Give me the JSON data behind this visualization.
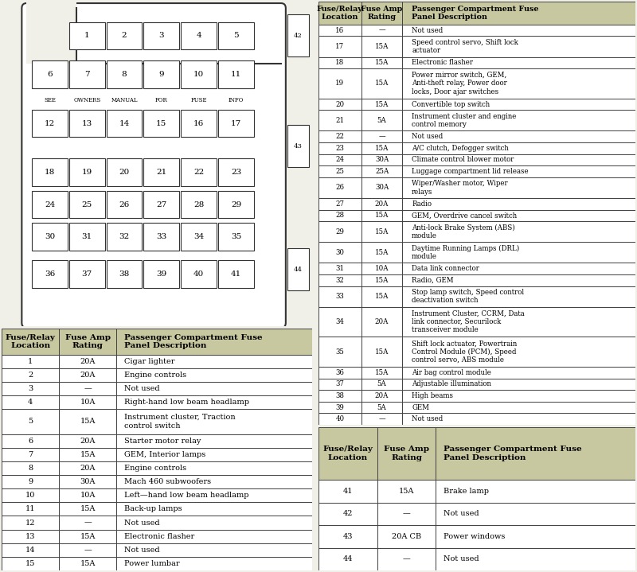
{
  "bg_color": "#f0f0e8",
  "table_header_bg": "#c8c8a0",
  "table_row_bg": "#ffffff",
  "table_border_color": "#444444",
  "fuse_box_bg": "#ffffff",
  "fuse_box_border": "#333333",
  "fuse_cell_bg": "#ffffff",
  "fuse_cell_border": "#333333",
  "row1_fuses": [
    "1",
    "2",
    "3",
    "4",
    "5"
  ],
  "row2_fuses": [
    "6",
    "7",
    "8",
    "9",
    "10",
    "11"
  ],
  "row2_labels": [
    "SEE",
    "OWNERS",
    "MANUAL",
    "FOR",
    "FUSE",
    "INFO"
  ],
  "row3_fuses": [
    "12",
    "13",
    "14",
    "15",
    "16",
    "17"
  ],
  "row4_fuses": [
    "18",
    "19",
    "20",
    "21",
    "22",
    "23"
  ],
  "row5_fuses": [
    "24",
    "25",
    "26",
    "27",
    "28",
    "29"
  ],
  "row6_fuses": [
    "30",
    "31",
    "32",
    "33",
    "34",
    "35"
  ],
  "row7_fuses": [
    "36",
    "37",
    "38",
    "39",
    "40",
    "41"
  ],
  "side_fuses": [
    "42",
    "43",
    "44"
  ],
  "table1_data": [
    [
      "Fuse/Relay\nLocation",
      "Fuse Amp\nRating",
      "Passenger Compartment Fuse\nPanel Description"
    ],
    [
      "1",
      "20A",
      "Cigar lighter"
    ],
    [
      "2",
      "20A",
      "Engine controls"
    ],
    [
      "3",
      "—",
      "Not used"
    ],
    [
      "4",
      "10A",
      "Right-hand low beam headlamp"
    ],
    [
      "5",
      "15A",
      "Instrument cluster, Traction\ncontrol switch"
    ],
    [
      "6",
      "20A",
      "Starter motor relay"
    ],
    [
      "7",
      "15A",
      "GEM, Interior lamps"
    ],
    [
      "8",
      "20A",
      "Engine controls"
    ],
    [
      "9",
      "30A",
      "Mach 460 subwoofers"
    ],
    [
      "10",
      "10A",
      "Left—hand low beam headlamp"
    ],
    [
      "11",
      "15A",
      "Back-up lamps"
    ],
    [
      "12",
      "—",
      "Not used"
    ],
    [
      "13",
      "15A",
      "Electronic flasher"
    ],
    [
      "14",
      "—",
      "Not used"
    ],
    [
      "15",
      "15A",
      "Power lumbar"
    ]
  ],
  "table2_data": [
    [
      "Fuse/Relay\nLocation",
      "Fuse Amp\nRating",
      "Passenger Compartment Fuse\nPanel Description"
    ],
    [
      "16",
      "—",
      "Not used"
    ],
    [
      "17",
      "15A",
      "Speed control servo, Shift lock\nactuator"
    ],
    [
      "18",
      "15A",
      "Electronic flasher"
    ],
    [
      "19",
      "15A",
      "Power mirror switch, GEM,\nAnti-theft relay, Power door\nlocks, Door ajar switches"
    ],
    [
      "20",
      "15A",
      "Convertible top switch"
    ],
    [
      "21",
      "5A",
      "Instrument cluster and engine\ncontrol memory"
    ],
    [
      "22",
      "—",
      "Not used"
    ],
    [
      "23",
      "15A",
      "A/C clutch, Defogger switch"
    ],
    [
      "24",
      "30A",
      "Climate control blower motor"
    ],
    [
      "25",
      "25A",
      "Luggage compartment lid release"
    ],
    [
      "26",
      "30A",
      "Wiper/Washer motor, Wiper\nrelays"
    ],
    [
      "27",
      "20A",
      "Radio"
    ],
    [
      "28",
      "15A",
      "GEM, Overdrive cancel switch"
    ],
    [
      "29",
      "15A",
      "Anti-lock Brake System (ABS)\nmodule"
    ],
    [
      "30",
      "15A",
      "Daytime Running Lamps (DRL)\nmodule"
    ],
    [
      "31",
      "10A",
      "Data link connector"
    ],
    [
      "32",
      "15A",
      "Radio, GEM"
    ],
    [
      "33",
      "15A",
      "Stop lamp switch, Speed control\ndeactivation switch"
    ],
    [
      "34",
      "20A",
      "Instrument Cluster, CCRM, Data\nlink connector, Securilock\ntransceiver module"
    ],
    [
      "35",
      "15A",
      "Shift lock actuator, Powertrain\nControl Module (PCM), Speed\ncontrol servo, ABS module"
    ],
    [
      "36",
      "15A",
      "Air bag control module"
    ],
    [
      "37",
      "5A",
      "Adjustable illumination"
    ],
    [
      "38",
      "20A",
      "High beams"
    ],
    [
      "39",
      "5A",
      "GEM"
    ],
    [
      "40",
      "—",
      "Not used"
    ]
  ],
  "table3_data": [
    [
      "Fuse/Relay\nLocation",
      "Fuse Amp\nRating",
      "Passenger Compartment Fuse\nPanel Description"
    ],
    [
      "41",
      "15A",
      "Brake lamp"
    ],
    [
      "42",
      "—",
      "Not used"
    ],
    [
      "43",
      "20A CB",
      "Power windows"
    ],
    [
      "44",
      "—",
      "Not used"
    ]
  ]
}
